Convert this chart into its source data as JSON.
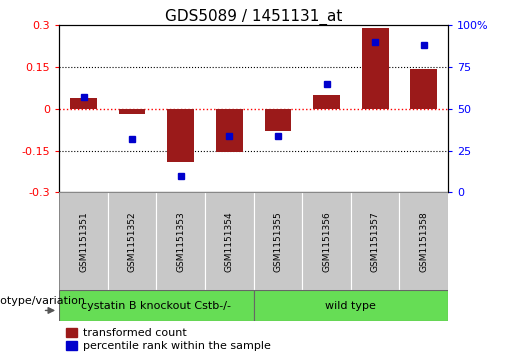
{
  "title": "GDS5089 / 1451131_at",
  "samples": [
    "GSM1151351",
    "GSM1151352",
    "GSM1151353",
    "GSM1151354",
    "GSM1151355",
    "GSM1151356",
    "GSM1151357",
    "GSM1151358"
  ],
  "bar_values": [
    0.04,
    -0.02,
    -0.19,
    -0.155,
    -0.08,
    0.05,
    0.29,
    0.145
  ],
  "dot_values_pct": [
    57,
    32,
    10,
    34,
    34,
    65,
    90,
    88
  ],
  "bar_color": "#9B1A1A",
  "dot_color": "#0000CC",
  "ylim_left": [
    -0.3,
    0.3
  ],
  "ylim_right": [
    0,
    100
  ],
  "yticks_left": [
    -0.3,
    -0.15,
    0.0,
    0.15,
    0.3
  ],
  "yticks_right": [
    0,
    25,
    50,
    75,
    100
  ],
  "ytick_labels_left": [
    "-0.3",
    "-0.15",
    "0",
    "0.15",
    "0.3"
  ],
  "ytick_labels_right": [
    "0",
    "25",
    "50",
    "75",
    "100%"
  ],
  "hlines": [
    0.15,
    -0.15
  ],
  "zero_line": 0.0,
  "group1_label": "cystatin B knockout Cstb-/-",
  "group2_label": "wild type",
  "group1_count": 4,
  "group2_count": 4,
  "group_color": "#66DD55",
  "genotype_label": "genotype/variation",
  "legend_bar_label": "transformed count",
  "legend_dot_label": "percentile rank within the sample",
  "bar_width": 0.55,
  "bg_color": "#FFFFFF",
  "label_row_color": "#C8C8C8",
  "title_fontsize": 11,
  "tick_fontsize": 8,
  "sample_fontsize": 6.5,
  "group_fontsize": 8,
  "legend_fontsize": 8,
  "genotype_fontsize": 8
}
